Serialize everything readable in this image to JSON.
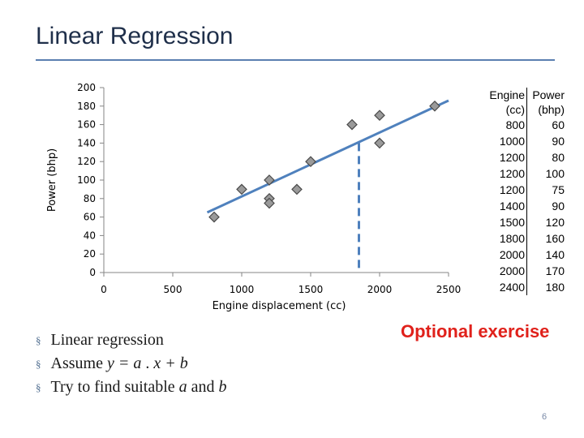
{
  "slide": {
    "title": "Linear Regression",
    "page_number": "6",
    "optional_label": "Optional exercise",
    "bullets": [
      {
        "pre": "Linear regression",
        "var1": "",
        "mid": "",
        "var2": "",
        "post": ""
      },
      {
        "pre": "Assume ",
        "var1": "y = a",
        "mid": " . ",
        "var2": "x + b",
        "post": ""
      },
      {
        "pre": "Try to find suitable ",
        "var1": "a",
        "mid": " and ",
        "var2": "b",
        "post": ""
      }
    ],
    "bullet_glyph": "§"
  },
  "table": {
    "headers": [
      "Engine (cc)",
      "Power (bhp)"
    ],
    "rows": [
      [
        "800",
        "60"
      ],
      [
        "1000",
        "90"
      ],
      [
        "1200",
        "80"
      ],
      [
        "1200",
        "100"
      ],
      [
        "1200",
        "75"
      ],
      [
        "1400",
        "90"
      ],
      [
        "1500",
        "120"
      ],
      [
        "1800",
        "160"
      ],
      [
        "2000",
        "140"
      ],
      [
        "2000",
        "170"
      ],
      [
        "2400",
        "180"
      ]
    ]
  },
  "chart_data": {
    "type": "scatter",
    "title": "",
    "xlabel": "Engine displacement (cc)",
    "ylabel": "Power (bhp)",
    "xlim": [
      0,
      2500
    ],
    "ylim": [
      0,
      200
    ],
    "x_ticks": [
      0,
      500,
      1000,
      1500,
      2000,
      2500
    ],
    "y_ticks": [
      0,
      20,
      40,
      60,
      80,
      100,
      120,
      140,
      160,
      180,
      200
    ],
    "points": [
      {
        "x": 800,
        "y": 60
      },
      {
        "x": 1000,
        "y": 90
      },
      {
        "x": 1200,
        "y": 80
      },
      {
        "x": 1200,
        "y": 100
      },
      {
        "x": 1200,
        "y": 75
      },
      {
        "x": 1400,
        "y": 90
      },
      {
        "x": 1500,
        "y": 120
      },
      {
        "x": 1800,
        "y": 160
      },
      {
        "x": 2000,
        "y": 140
      },
      {
        "x": 2000,
        "y": 170
      },
      {
        "x": 2400,
        "y": 180
      }
    ],
    "fit_line": {
      "x_start": 750,
      "y_start": 65,
      "x_end": 2500,
      "y_end": 186
    },
    "prediction_marker": {
      "x": 1850,
      "y_from": 0,
      "y_to": 140
    },
    "colors": {
      "marker_fill": "#9a9a9a",
      "marker_stroke": "#4a4a4a",
      "line": "#4f81bd",
      "axis": "#868686"
    }
  }
}
